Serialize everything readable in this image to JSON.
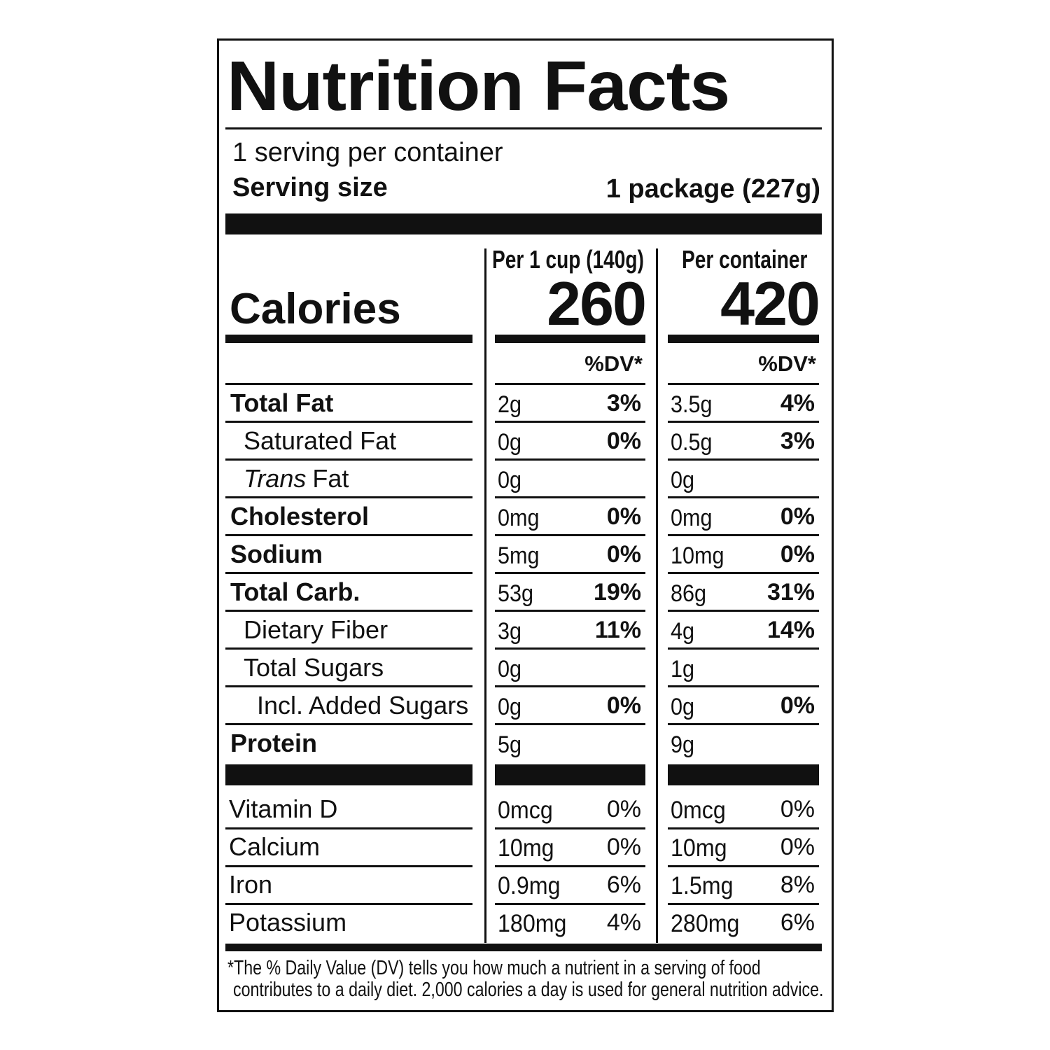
{
  "title": "Nutrition Facts",
  "servings_per_container": "1 serving per container",
  "serving_size": {
    "label": "Serving size",
    "value": "1 package (227g)"
  },
  "calories_label": "Calories",
  "columns": [
    {
      "header": "Per 1 cup (140g)",
      "calories": "260",
      "dv_header": "%DV*"
    },
    {
      "header": "Per container",
      "calories": "420",
      "dv_header": "%DV*"
    }
  ],
  "nutrients": [
    {
      "name": "Total Fat",
      "bold": true,
      "indent": 0,
      "values": [
        [
          "2g",
          "3%"
        ],
        [
          "3.5g",
          "4%"
        ]
      ]
    },
    {
      "name": "Saturated Fat",
      "bold": false,
      "indent": 1,
      "values": [
        [
          "0g",
          "0%"
        ],
        [
          "0.5g",
          "3%"
        ]
      ]
    },
    {
      "italic_prefix": "Trans",
      "name": "Fat",
      "bold": false,
      "indent": 1,
      "values": [
        [
          "0g",
          null
        ],
        [
          "0g",
          null
        ]
      ]
    },
    {
      "name": "Cholesterol",
      "bold": true,
      "indent": 0,
      "values": [
        [
          "0mg",
          "0%"
        ],
        [
          "0mg",
          "0%"
        ]
      ]
    },
    {
      "name": "Sodium",
      "bold": true,
      "indent": 0,
      "values": [
        [
          "5mg",
          "0%"
        ],
        [
          "10mg",
          "0%"
        ]
      ]
    },
    {
      "name": "Total Carb.",
      "bold": true,
      "indent": 0,
      "values": [
        [
          "53g",
          "19%"
        ],
        [
          "86g",
          "31%"
        ]
      ]
    },
    {
      "name": "Dietary Fiber",
      "bold": false,
      "indent": 1,
      "values": [
        [
          "3g",
          "11%"
        ],
        [
          "4g",
          "14%"
        ]
      ]
    },
    {
      "name": "Total Sugars",
      "bold": false,
      "indent": 1,
      "values": [
        [
          "0g",
          null
        ],
        [
          "1g",
          null
        ]
      ]
    },
    {
      "name": "Incl. Added Sugars",
      "bold": false,
      "indent": 2,
      "values": [
        [
          "0g",
          "0%"
        ],
        [
          "0g",
          "0%"
        ]
      ]
    },
    {
      "name": "Protein",
      "bold": true,
      "indent": 0,
      "values": [
        [
          "5g",
          null
        ],
        [
          "9g",
          null
        ]
      ]
    }
  ],
  "vitamins": [
    {
      "name": "Vitamin D",
      "values": [
        [
          "0mcg",
          "0%"
        ],
        [
          "0mcg",
          "0%"
        ]
      ]
    },
    {
      "name": "Calcium",
      "values": [
        [
          "10mg",
          "0%"
        ],
        [
          "10mg",
          "0%"
        ]
      ]
    },
    {
      "name": "Iron",
      "values": [
        [
          "0.9mg",
          "6%"
        ],
        [
          "1.5mg",
          "8%"
        ]
      ]
    },
    {
      "name": "Potassium",
      "values": [
        [
          "180mg",
          "4%"
        ],
        [
          "280mg",
          "6%"
        ]
      ]
    }
  ],
  "footnote": [
    "*The % Daily Value (DV) tells you how much a nutrient in a serving of food",
    "contributes to a daily diet. 2,000 calories a day is used for general nutrition advice."
  ]
}
